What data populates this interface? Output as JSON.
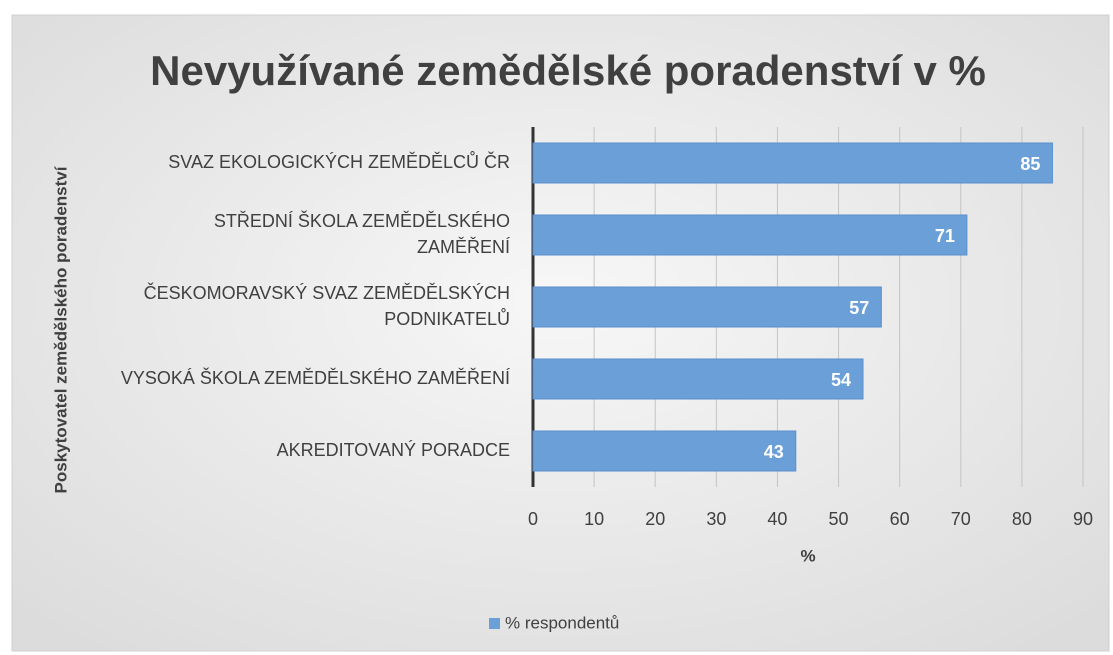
{
  "chart_data": {
    "type": "bar",
    "orientation": "horizontal",
    "title": "Nevyužívané zemědělské poradenství v  %",
    "x_label": "%",
    "y_label": "Poskytovatel zemědělského poradenství",
    "categories": [
      "SVAZ EKOLOGICKÝCH ZEMĚDĚLCŮ ČR",
      "STŘEDNÍ ŠKOLA ZEMĚDĚLSKÉHO ZAMĚŘENÍ",
      "ČESKOMORAVSKÝ SVAZ ZEMĚDĚLSKÝCH PODNIKATELŮ",
      "VYSOKÁ ŠKOLA ZEMĚDĚLSKÉHO ZAMĚŘENÍ",
      "AKREDITOVANÝ PORADCE"
    ],
    "series": [
      {
        "name": "% respondentů",
        "color": "#6a9fd8",
        "values": [
          85,
          71,
          57,
          54,
          43
        ]
      }
    ],
    "xlim": [
      0,
      90
    ],
    "xticks": [
      0,
      10,
      20,
      30,
      40,
      50,
      60,
      70,
      80,
      90
    ],
    "grid": true,
    "legend": "bottom"
  }
}
